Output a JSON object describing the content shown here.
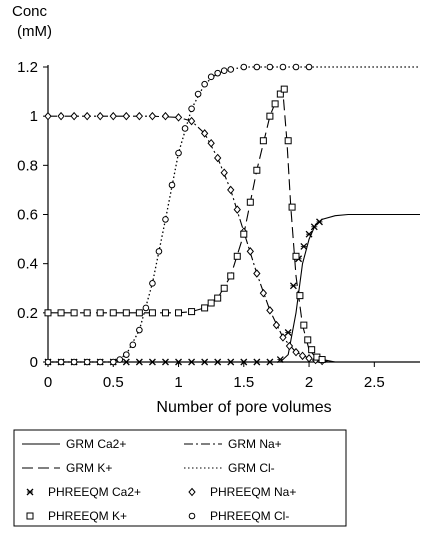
{
  "chart_data": {
    "type": "line",
    "title": "",
    "ylabel": "Conc\n(mM)",
    "ylabel_lines": [
      "Conc",
      "(mM)"
    ],
    "xlabel": "Number of pore volumes",
    "xlim": [
      0,
      2.85
    ],
    "ylim": [
      0,
      1.2
    ],
    "xticks": [
      0,
      0.5,
      1,
      1.5,
      2,
      2.5
    ],
    "xtick_labels": [
      "0",
      "0.5",
      "1",
      "1.5",
      "2",
      "2.5"
    ],
    "yticks": [
      0,
      0.2,
      0.4,
      0.6,
      0.8,
      1,
      1.2
    ],
    "ytick_labels": [
      "0",
      "0.2",
      "0.4",
      "0.6",
      "0.8",
      "1",
      "1.2"
    ],
    "grid": false,
    "legend_position": "bottom",
    "series": [
      {
        "name": "GRM Ca2+",
        "kind": "line",
        "dash": "solid",
        "x": [
          0,
          1.7,
          1.78,
          1.84,
          1.9,
          1.95,
          2.0,
          2.05,
          2.1,
          2.2,
          2.3,
          2.4,
          2.85
        ],
        "y": [
          0,
          0,
          0.0,
          0.03,
          0.2,
          0.4,
          0.5,
          0.56,
          0.58,
          0.595,
          0.6,
          0.6,
          0.6
        ]
      },
      {
        "name": "GRM Na+",
        "kind": "line",
        "dash": "dashdot",
        "x": [
          0,
          0.8,
          1.0,
          1.1,
          1.2,
          1.3,
          1.4,
          1.5,
          1.6,
          1.7,
          1.8,
          1.9,
          2.0,
          2.1,
          2.2,
          2.85
        ],
        "y": [
          1.0,
          1.0,
          0.995,
          0.98,
          0.93,
          0.83,
          0.7,
          0.53,
          0.36,
          0.21,
          0.1,
          0.04,
          0.015,
          0.005,
          0.0,
          0.0
        ]
      },
      {
        "name": "GRM K+",
        "kind": "line",
        "dash": "longdash",
        "x": [
          0,
          1.0,
          1.1,
          1.2,
          1.3,
          1.4,
          1.5,
          1.6,
          1.7,
          1.76,
          1.8,
          1.83,
          1.86,
          1.9,
          1.95,
          2.0,
          2.05,
          2.1,
          2.2,
          2.85
        ],
        "y": [
          0.2,
          0.2,
          0.205,
          0.22,
          0.26,
          0.35,
          0.52,
          0.78,
          1.0,
          1.08,
          1.1,
          0.9,
          0.63,
          0.35,
          0.15,
          0.05,
          0.02,
          0.01,
          0.0,
          0.0
        ]
      },
      {
        "name": "GRM Cl-",
        "kind": "line",
        "dash": "dotted",
        "x": [
          0,
          0.5,
          0.6,
          0.7,
          0.8,
          0.9,
          1.0,
          1.1,
          1.2,
          1.3,
          1.4,
          1.5,
          1.6,
          1.8,
          2.0,
          2.85
        ],
        "y": [
          0,
          0.0,
          0.03,
          0.13,
          0.32,
          0.58,
          0.85,
          1.03,
          1.13,
          1.175,
          1.19,
          1.2,
          1.2,
          1.2,
          1.2,
          1.2
        ]
      },
      {
        "name": "PHREEQM Ca2+",
        "kind": "markers",
        "marker": "x",
        "x": [
          0.0,
          0.1,
          0.2,
          0.3,
          0.4,
          0.5,
          0.6,
          0.7,
          0.8,
          0.9,
          1.0,
          1.1,
          1.2,
          1.3,
          1.4,
          1.5,
          1.6,
          1.7,
          1.78,
          1.84,
          1.88,
          1.92,
          1.96,
          2.0,
          2.04,
          2.08
        ],
        "y": [
          0.0,
          0.0,
          0.0,
          0.0,
          0.0,
          0.0,
          0.0,
          0.0,
          0.0,
          0.0,
          0.0,
          0.0,
          0.0,
          0.0,
          0.0,
          0.0,
          0.0,
          0.0,
          0.01,
          0.12,
          0.31,
          0.42,
          0.47,
          0.52,
          0.55,
          0.57
        ]
      },
      {
        "name": "PHREEQM Na+",
        "kind": "markers",
        "marker": "diamond",
        "x": [
          0.0,
          0.1,
          0.2,
          0.3,
          0.4,
          0.5,
          0.6,
          0.7,
          0.8,
          0.9,
          1.0,
          1.1,
          1.2,
          1.25,
          1.3,
          1.35,
          1.4,
          1.45,
          1.5,
          1.55,
          1.6,
          1.65,
          1.7,
          1.75,
          1.8,
          1.85,
          1.9,
          1.95,
          2.0,
          2.05,
          2.1
        ],
        "y": [
          1.0,
          1.0,
          1.0,
          1.0,
          1.0,
          1.0,
          1.0,
          1.0,
          1.0,
          1.0,
          0.995,
          0.98,
          0.93,
          0.89,
          0.83,
          0.77,
          0.7,
          0.62,
          0.53,
          0.45,
          0.36,
          0.28,
          0.21,
          0.15,
          0.1,
          0.065,
          0.04,
          0.025,
          0.015,
          0.008,
          0.004
        ]
      },
      {
        "name": "PHREEQM K+",
        "kind": "markers",
        "marker": "square",
        "x": [
          0.0,
          0.1,
          0.2,
          0.3,
          0.4,
          0.5,
          0.6,
          0.7,
          0.8,
          0.9,
          1.0,
          1.1,
          1.2,
          1.25,
          1.3,
          1.35,
          1.4,
          1.45,
          1.5,
          1.55,
          1.6,
          1.65,
          1.7,
          1.74,
          1.78,
          1.81,
          1.84,
          1.87,
          1.9,
          1.93,
          1.96,
          1.99,
          2.02,
          2.06,
          2.1
        ],
        "y": [
          0.2,
          0.2,
          0.2,
          0.2,
          0.2,
          0.2,
          0.2,
          0.2,
          0.2,
          0.2,
          0.2,
          0.205,
          0.22,
          0.24,
          0.26,
          0.3,
          0.35,
          0.43,
          0.52,
          0.65,
          0.78,
          0.9,
          1.0,
          1.05,
          1.09,
          1.11,
          0.9,
          0.63,
          0.43,
          0.27,
          0.15,
          0.09,
          0.05,
          0.02,
          0.01
        ]
      },
      {
        "name": "PHREEQM Cl-",
        "kind": "markers",
        "marker": "circle",
        "x": [
          0.0,
          0.1,
          0.2,
          0.3,
          0.4,
          0.5,
          0.55,
          0.6,
          0.65,
          0.7,
          0.75,
          0.8,
          0.85,
          0.9,
          0.95,
          1.0,
          1.05,
          1.1,
          1.15,
          1.2,
          1.25,
          1.3,
          1.35,
          1.4,
          1.5,
          1.6,
          1.7,
          1.8,
          1.9,
          2.0
        ],
        "y": [
          0.0,
          0.0,
          0.0,
          0.0,
          0.0,
          0.0,
          0.01,
          0.03,
          0.07,
          0.13,
          0.22,
          0.32,
          0.45,
          0.58,
          0.72,
          0.85,
          0.95,
          1.03,
          1.09,
          1.13,
          1.16,
          1.175,
          1.185,
          1.19,
          1.2,
          1.2,
          1.2,
          1.2,
          1.2,
          1.2
        ]
      }
    ],
    "legend": [
      {
        "label": "GRM Ca2+",
        "symbol": "line-solid"
      },
      {
        "label": "GRM Na+",
        "symbol": "line-dashdot"
      },
      {
        "label": "GRM K+",
        "symbol": "line-longdash"
      },
      {
        "label": "GRM Cl-",
        "symbol": "line-dotted"
      },
      {
        "label": "PHREEQM Ca2+",
        "symbol": "marker-x"
      },
      {
        "label": "PHREEQM Na+",
        "symbol": "marker-diamond"
      },
      {
        "label": "PHREEQM K+",
        "symbol": "marker-square"
      },
      {
        "label": "PHREEQM Cl-",
        "symbol": "marker-circle"
      }
    ]
  }
}
